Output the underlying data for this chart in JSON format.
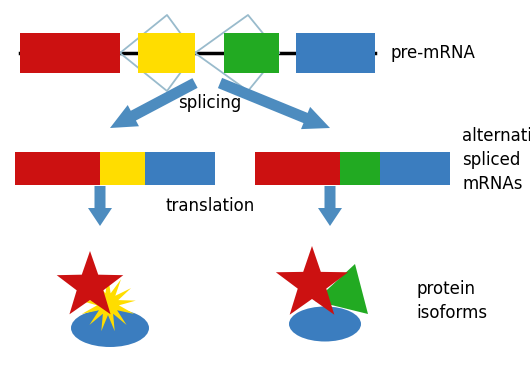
{
  "bg_color": "#ffffff",
  "colors": {
    "red": "#cc1111",
    "yellow": "#ffdd00",
    "green": "#22aa22",
    "blue": "#3b7dbf",
    "arrow_blue": "#4d8cbf",
    "intron_line": "#99bbcc",
    "black": "#000000"
  },
  "text": {
    "pre_mrna": "pre-mRNA",
    "splicing": "splicing",
    "alt_spliced": "alternatively\nspliced\nmRNAs",
    "translation": "translation",
    "protein_isoforms": "protein\nisoforms"
  },
  "fontsize": 12
}
